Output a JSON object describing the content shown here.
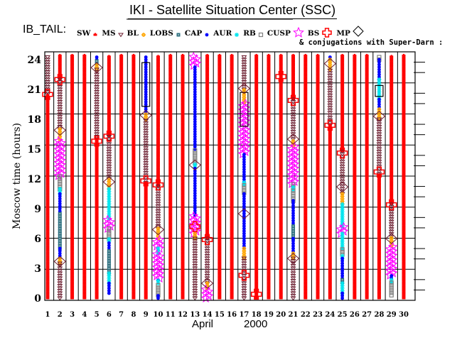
{
  "window": {
    "title": "IKI - Satellite Situation Center (SSC)"
  },
  "header": {
    "satellite": "IB_TAIL:",
    "conjugation_note": "& conjugations with Super-Darn :"
  },
  "legend": [
    {
      "label": "SW",
      "type": "SW",
      "color": "#ff0000"
    },
    {
      "label": "MS",
      "type": "MS",
      "color": "#6b1c2e"
    },
    {
      "label": "BL",
      "type": "BL",
      "color": "#ffa500"
    },
    {
      "label": "LOBS",
      "type": "LOBS",
      "color": "#2e7080"
    },
    {
      "label": "CAP",
      "type": "CAP",
      "color": "#0000ff"
    },
    {
      "label": "AUR",
      "type": "AUR",
      "color": "#00e5ee"
    },
    {
      "label": "RB",
      "type": "RB",
      "color": "#808080"
    },
    {
      "label": "CUSP",
      "type": "CUSP",
      "color": "#ff00ff"
    },
    {
      "label": "BS",
      "type": "BS",
      "color": "#ff0000"
    },
    {
      "label": "MP",
      "type": "MP",
      "color": "#6b1c2e"
    }
  ],
  "chart_data": {
    "type": "scatter",
    "title": "IKI - Satellite Situation Center (SSC)",
    "xlabel_month": "April",
    "xlabel_year": "2000",
    "ylabel": "Moscow time (hours)",
    "xlim": [
      1,
      30
    ],
    "ylim": [
      0,
      24
    ],
    "xticks": [
      "1",
      "2",
      "3",
      "4",
      "5",
      "6",
      "7",
      "8",
      "9",
      "10",
      "11",
      "12",
      "13",
      "14",
      "15",
      "16",
      "17",
      "18",
      "19",
      "20",
      "21",
      "22",
      "23",
      "24",
      "25",
      "26",
      "27",
      "28",
      "29",
      "30"
    ],
    "yticks": [
      "0",
      "3",
      "6",
      "9",
      "12",
      "15",
      "18",
      "21",
      "24"
    ],
    "grid": true,
    "segments": [
      {
        "day": 1,
        "regions": [
          [
            "MS",
            20.5,
            24.5
          ],
          [
            "SW",
            0,
            20.5
          ]
        ]
      },
      {
        "day": 2,
        "regions": [
          [
            "SW",
            22,
            24.5
          ],
          [
            "MS",
            17,
            22
          ],
          [
            "BL",
            16,
            17
          ],
          [
            "CUSP",
            12.3,
            16
          ],
          [
            "RB",
            11,
            12.3
          ],
          [
            "AUR",
            10.5,
            11
          ],
          [
            "CAP",
            8.5,
            10.5
          ],
          [
            "LOBS",
            5,
            8.5
          ],
          [
            "CAP",
            4,
            5
          ],
          [
            "BL",
            3.5,
            4
          ],
          [
            "MS",
            0,
            3.5
          ]
        ]
      },
      {
        "day": 3,
        "regions": [
          [
            "SW",
            0,
            24.5
          ]
        ]
      },
      {
        "day": 4,
        "regions": [
          [
            "SW",
            0,
            24.5
          ]
        ]
      },
      {
        "day": 5,
        "regions": [
          [
            "CAP",
            24,
            24.5
          ],
          [
            "LOBS",
            23.6,
            24
          ],
          [
            "BL",
            23,
            23.6
          ],
          [
            "MS",
            16,
            23
          ],
          [
            "SW",
            0,
            16
          ]
        ]
      },
      {
        "day": 6,
        "regions": [
          [
            "SW",
            16.3,
            24.5
          ],
          [
            "MS",
            12,
            16.3
          ],
          [
            "BL",
            11,
            12
          ],
          [
            "AUR",
            8,
            11
          ],
          [
            "CUSP",
            7,
            8
          ],
          [
            "RB",
            6,
            7
          ],
          [
            "AUR",
            5.7,
            6
          ],
          [
            "CAP",
            4.8,
            5.7
          ],
          [
            "LOBS",
            2.5,
            4.8
          ],
          [
            "AUR",
            1.5,
            2.5
          ],
          [
            "CAP",
            0.5,
            1.5
          ]
        ]
      },
      {
        "day": 7,
        "regions": [
          [
            "SW",
            0,
            24.5
          ]
        ]
      },
      {
        "day": 8,
        "regions": [
          [
            "SW",
            0,
            24.5
          ]
        ]
      },
      {
        "day": 9,
        "regions": [
          [
            "CAP",
            18.5,
            24.5
          ],
          [
            "BL",
            18,
            18.5
          ],
          [
            "MS",
            11.6,
            18
          ],
          [
            "SW",
            0,
            11.6
          ]
        ]
      },
      {
        "day": 10,
        "regions": [
          [
            "SW",
            11.3,
            24.5
          ],
          [
            "MS",
            7,
            11.3
          ],
          [
            "BL",
            6,
            7
          ],
          [
            "CUSP",
            5,
            6
          ],
          [
            "AUR",
            4.5,
            5
          ],
          [
            "CUSP",
            2,
            4.5
          ],
          [
            "CAP",
            1.8,
            2
          ],
          [
            "AUR",
            1.5,
            1.8
          ],
          [
            "RB",
            0.3,
            1.5
          ],
          [
            "CAP",
            0,
            0.3
          ]
        ]
      },
      {
        "day": 11,
        "regions": [
          [
            "SW",
            0,
            24.5
          ]
        ]
      },
      {
        "day": 12,
        "regions": [
          [
            "SW",
            0,
            24.5
          ]
        ]
      },
      {
        "day": 13,
        "regions": [
          [
            "CUSP",
            23.4,
            24.5
          ],
          [
            "CAP",
            15,
            23.4
          ],
          [
            "RB",
            13.6,
            15
          ],
          [
            "AUR",
            13.2,
            13.6
          ],
          [
            "CAP",
            8.3,
            13.2
          ],
          [
            "CUSP",
            6.5,
            8.3
          ],
          [
            "BL",
            6,
            6.5
          ],
          [
            "MS",
            0,
            6
          ]
        ]
      },
      {
        "day": 14,
        "regions": [
          [
            "SW",
            6,
            24.5
          ],
          [
            "MS",
            1.5,
            6
          ],
          [
            "BL",
            1,
            1.5
          ],
          [
            "CUSP",
            0,
            1
          ]
        ]
      },
      {
        "day": 15,
        "regions": [
          [
            "SW",
            0,
            24.5
          ]
        ]
      },
      {
        "day": 16,
        "regions": [
          [
            "SW",
            0,
            24.5
          ]
        ]
      },
      {
        "day": 17,
        "regions": [
          [
            "MS",
            21,
            24.5
          ],
          [
            "BL",
            19.7,
            21
          ],
          [
            "CUSP",
            14.5,
            19.7
          ],
          [
            "CAP",
            11.7,
            14.5
          ],
          [
            "AUR",
            11.4,
            11.7
          ],
          [
            "RB",
            10.6,
            11.4
          ],
          [
            "CAP",
            5,
            10.6
          ],
          [
            "BL",
            4,
            5
          ],
          [
            "MS",
            0,
            4
          ]
        ]
      },
      {
        "day": 18,
        "regions": [
          [
            "SW",
            0,
            24.5
          ]
        ]
      },
      {
        "day": 19,
        "regions": [
          [
            "SW",
            0,
            24.5
          ]
        ]
      },
      {
        "day": 20,
        "regions": [
          [
            "SW",
            0,
            24.5
          ]
        ]
      },
      {
        "day": 21,
        "regions": [
          [
            "SW",
            20,
            24.5
          ],
          [
            "MS",
            16,
            20
          ],
          [
            "BL",
            15.3,
            16
          ],
          [
            "CUSP",
            11.5,
            15.3
          ],
          [
            "RB",
            11.2,
            11.5
          ],
          [
            "AUR",
            10.9,
            11.2
          ],
          [
            "RB",
            9.8,
            10.9
          ],
          [
            "CAP",
            7.3,
            9.8
          ],
          [
            "LOBS",
            6,
            7.3
          ],
          [
            "CAP",
            4.5,
            6
          ],
          [
            "BL",
            4,
            4.5
          ],
          [
            "MS",
            0,
            4
          ]
        ]
      },
      {
        "day": 22,
        "regions": [
          [
            "SW",
            0,
            24.5
          ]
        ]
      },
      {
        "day": 23,
        "regions": [
          [
            "SW",
            0,
            24.5
          ]
        ]
      },
      {
        "day": 24,
        "regions": [
          [
            "CAP",
            24,
            24.5
          ],
          [
            "BL",
            23,
            24
          ],
          [
            "MS",
            17.4,
            23
          ],
          [
            "SW",
            0,
            17.4
          ]
        ]
      },
      {
        "day": 25,
        "regions": [
          [
            "SW",
            14.8,
            24.5
          ],
          [
            "MS",
            10.5,
            14.8
          ],
          [
            "BL",
            9.5,
            10.5
          ],
          [
            "AUR",
            7.2,
            9.5
          ],
          [
            "CUSP",
            6.5,
            7.2
          ],
          [
            "AUR",
            5,
            6.5
          ],
          [
            "RB",
            4.4,
            5
          ],
          [
            "AUR",
            4,
            4.4
          ],
          [
            "CAP",
            2,
            4
          ],
          [
            "LOBS",
            1.6,
            2
          ],
          [
            "AUR",
            0.5,
            1.6
          ],
          [
            "CAP",
            0,
            0.5
          ]
        ]
      },
      {
        "day": 26,
        "regions": [
          [
            "SW",
            0,
            24.5
          ]
        ]
      },
      {
        "day": 27,
        "regions": [
          [
            "SW",
            0,
            24.5
          ]
        ]
      },
      {
        "day": 28,
        "regions": [
          [
            "RB",
            24,
            24.5
          ],
          [
            "CAP",
            22,
            24
          ],
          [
            "AUR",
            20,
            22
          ],
          [
            "CAP",
            19,
            20
          ],
          [
            "BL",
            18,
            19
          ],
          [
            "MS",
            12.5,
            18
          ],
          [
            "SW",
            0,
            12.5
          ]
        ]
      },
      {
        "day": 29,
        "regions": [
          [
            "SW",
            9.5,
            24.5
          ],
          [
            "MS",
            6.2,
            9.5
          ],
          [
            "BL",
            5.3,
            6.2
          ],
          [
            "CUSP",
            2.3,
            5.3
          ],
          [
            "CAP",
            2,
            2.3
          ],
          [
            "AUR",
            1.6,
            2
          ],
          [
            "RB",
            0.3,
            1.6
          ]
        ]
      },
      {
        "day": 30,
        "regions": [
          [
            "SW",
            0,
            24.5
          ]
        ]
      }
    ],
    "bow_shock_crossings": [
      [
        1,
        20.5
      ],
      [
        2,
        22
      ],
      [
        5,
        15.8
      ],
      [
        6,
        16.3
      ],
      [
        9,
        11.8
      ],
      [
        10,
        11.4
      ],
      [
        13,
        7.2
      ],
      [
        14,
        5.9
      ],
      [
        17,
        2.3
      ],
      [
        18,
        0.4
      ],
      [
        20,
        22.3
      ],
      [
        21,
        19.9
      ],
      [
        24,
        17.4
      ],
      [
        25,
        14.6
      ],
      [
        28,
        12.7
      ],
      [
        29,
        9.4
      ]
    ],
    "magnetopause_crossings": [
      [
        2,
        3.7
      ],
      [
        2,
        16.9
      ],
      [
        5,
        23.2
      ],
      [
        6,
        11.7
      ],
      [
        9,
        18.4
      ],
      [
        10,
        6.9
      ],
      [
        13,
        13.4
      ],
      [
        14,
        1.5
      ],
      [
        17,
        21.1
      ],
      [
        17,
        8.5
      ],
      [
        21,
        16
      ],
      [
        21,
        4
      ],
      [
        24,
        23.6
      ],
      [
        25,
        11.2
      ],
      [
        28,
        18.3
      ],
      [
        29,
        6
      ]
    ],
    "superdarn_conjugations": [
      [
        9,
        19.3,
        23.7
      ],
      [
        17,
        17.3,
        20.7
      ],
      [
        28,
        20.3,
        21.4
      ]
    ]
  }
}
